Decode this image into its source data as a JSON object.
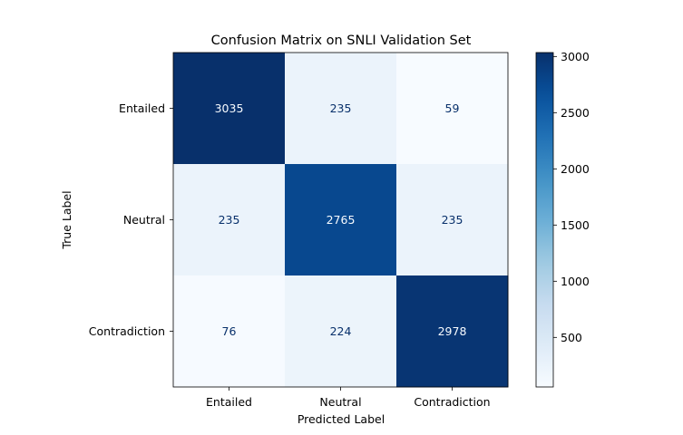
{
  "chart_data": {
    "type": "heatmap",
    "title": "Confusion Matrix on SNLI Validation Set",
    "xlabel": "Predicted Label",
    "ylabel": "True Label",
    "x_categories": [
      "Entailed",
      "Neutral",
      "Contradiction"
    ],
    "y_categories": [
      "Entailed",
      "Neutral",
      "Contradiction"
    ],
    "values": [
      [
        3035,
        235,
        59
      ],
      [
        235,
        2765,
        235
      ],
      [
        76,
        224,
        2978
      ]
    ],
    "colormap": "Blues",
    "colorbar": {
      "vmin": 59,
      "vmax": 3035,
      "ticks": [
        500,
        1000,
        1500,
        2000,
        2500,
        3000
      ]
    },
    "grid": false
  }
}
